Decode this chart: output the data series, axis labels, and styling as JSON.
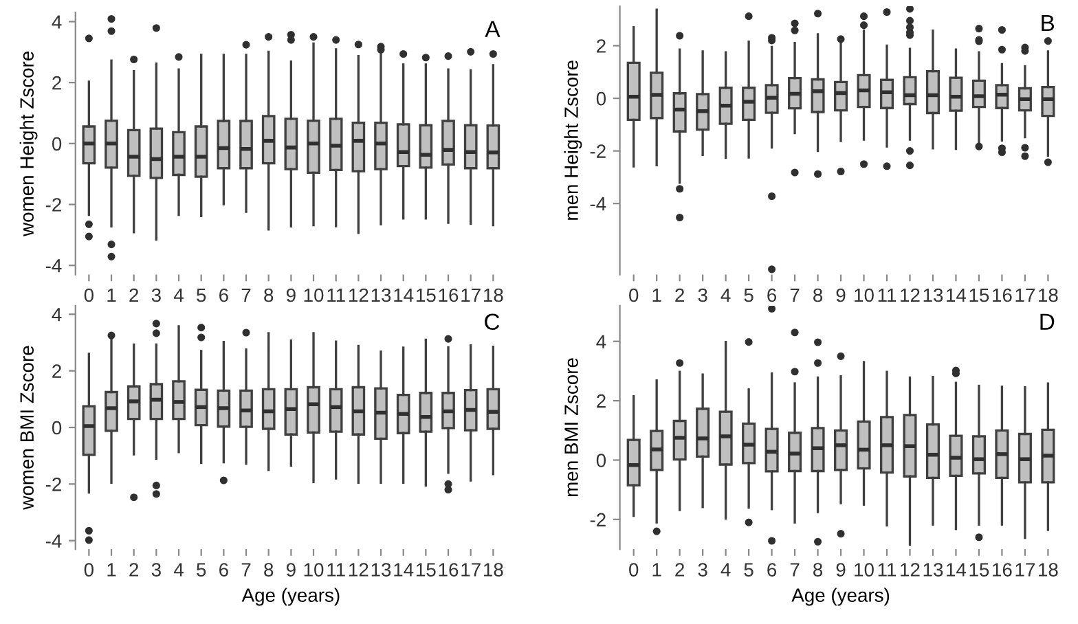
{
  "chart_data": [
    {
      "type": "box",
      "ylabel": "women Height Zscore",
      "annotations": [
        "A"
      ],
      "categories": [
        "0",
        "1",
        "2",
        "3",
        "4",
        "5",
        "6",
        "7",
        "8",
        "9",
        "10",
        "11",
        "12",
        "13",
        "14",
        "15",
        "16",
        "17",
        "18"
      ],
      "color": "#bfbfbf",
      "ylim": [
        -4.3,
        4.3
      ],
      "yticks": [
        -4,
        -2,
        0,
        2,
        4
      ],
      "boxes": [
        {
          "low": -2.34,
          "q1": -0.65,
          "median": 0,
          "q3": 0.56,
          "high": 2.03,
          "outliers": [
            3.45,
            -2.65,
            -3.05
          ]
        },
        {
          "low": -2.72,
          "q1": -0.79,
          "median": 0,
          "q3": 0.75,
          "high": 2.72,
          "outliers": [
            4.09,
            3.69,
            -3.31,
            -3.71
          ]
        },
        {
          "low": -2.91,
          "q1": -1.06,
          "median": -0.43,
          "q3": 0.44,
          "high": 2.37,
          "outliers": [
            2.76
          ]
        },
        {
          "low": -3.15,
          "q1": -1.13,
          "median": -0.51,
          "q3": 0.49,
          "high": 2.62,
          "outliers": [
            3.79
          ]
        },
        {
          "low": -2.34,
          "q1": -1.03,
          "median": -0.43,
          "q3": 0.37,
          "high": 2.43,
          "outliers": [
            2.84
          ]
        },
        {
          "low": -2.38,
          "q1": -1.09,
          "median": -0.43,
          "q3": 0.56,
          "high": 2.91
        },
        {
          "low": -1.99,
          "q1": -0.81,
          "median": -0.15,
          "q3": 0.74,
          "high": 2.91
        },
        {
          "low": -2.24,
          "q1": -0.81,
          "median": -0.18,
          "q3": 0.74,
          "high": 2.91,
          "outliers": [
            3.24
          ]
        },
        {
          "low": -2.82,
          "q1": -0.65,
          "median": 0.09,
          "q3": 0.9,
          "high": 3.01,
          "outliers": [
            3.5
          ]
        },
        {
          "low": -2.72,
          "q1": -0.84,
          "median": -0.13,
          "q3": 0.81,
          "high": 2.69,
          "outliers": [
            3.57,
            3.4
          ]
        },
        {
          "low": -2.68,
          "q1": -0.96,
          "median": 0,
          "q3": 0.75,
          "high": 3.28,
          "outliers": [
            3.5
          ]
        },
        {
          "low": -2.71,
          "q1": -0.87,
          "median": -0.07,
          "q3": 0.81,
          "high": 3.09,
          "outliers": [
            3.4
          ]
        },
        {
          "low": -2.93,
          "q1": -0.91,
          "median": 0.09,
          "q3": 0.68,
          "high": 2.87,
          "outliers": [
            3.25
          ]
        },
        {
          "low": -2.65,
          "q1": -0.84,
          "median": 0,
          "q3": 0.68,
          "high": 2.99,
          "outliers": [
            3.18,
            3.08
          ]
        },
        {
          "low": -2.46,
          "q1": -0.74,
          "median": -0.28,
          "q3": 0.63,
          "high": 2.59,
          "outliers": [
            2.94
          ]
        },
        {
          "low": -2.46,
          "q1": -0.79,
          "median": -0.37,
          "q3": 0.6,
          "high": 2.59,
          "outliers": [
            2.82
          ]
        },
        {
          "low": -2.6,
          "q1": -0.69,
          "median": -0.21,
          "q3": 0.74,
          "high": 2.43,
          "outliers": [
            2.87
          ]
        },
        {
          "low": -2.63,
          "q1": -0.81,
          "median": -0.28,
          "q3": 0.6,
          "high": 2.4,
          "outliers": [
            3.01
          ]
        },
        {
          "low": -2.68,
          "q1": -0.81,
          "median": -0.29,
          "q3": 0.59,
          "high": 2.57,
          "outliers": [
            2.94
          ]
        }
      ]
    },
    {
      "type": "box",
      "ylabel": "men Height Zscore",
      "annotations": [
        "B"
      ],
      "categories": [
        "0",
        "1",
        "2",
        "3",
        "4",
        "5",
        "6",
        "7",
        "8",
        "9",
        "10",
        "11",
        "12",
        "13",
        "14",
        "15",
        "16",
        "17",
        "18"
      ],
      "color": "#bfbfbf",
      "ylim": [
        -6.7,
        3.5
      ],
      "yticks": [
        -4,
        -2,
        0,
        2
      ],
      "boxes": [
        {
          "low": -2.59,
          "q1": -0.82,
          "median": 0.06,
          "q3": 1.35,
          "high": 2.7
        },
        {
          "low": -2.54,
          "q1": -0.75,
          "median": 0.13,
          "q3": 0.97,
          "high": 3.37
        },
        {
          "low": -3.21,
          "q1": -1.26,
          "median": -0.43,
          "q3": 0.19,
          "high": 1.85,
          "outliers": [
            2.38,
            -3.44,
            -4.53
          ]
        },
        {
          "low": -2.15,
          "q1": -1.19,
          "median": -0.49,
          "q3": 0.16,
          "high": 1.78
        },
        {
          "low": -2.26,
          "q1": -0.97,
          "median": -0.28,
          "q3": 0.4,
          "high": 1.75
        },
        {
          "low": -2.25,
          "q1": -0.82,
          "median": -0.13,
          "q3": 0.4,
          "high": 2.15,
          "outliers": [
            3.12
          ]
        },
        {
          "low": -1.87,
          "q1": -0.55,
          "median": 0.02,
          "q3": 0.5,
          "high": 1.95,
          "outliers": [
            2.3,
            2.2,
            -3.72,
            -6.5
          ]
        },
        {
          "low": -1.32,
          "q1": -0.38,
          "median": 0.17,
          "q3": 0.77,
          "high": 2.1,
          "outliers": [
            2.85,
            2.58,
            -2.82
          ]
        },
        {
          "low": -2.0,
          "q1": -0.52,
          "median": 0.27,
          "q3": 0.72,
          "high": 2.43,
          "outliers": [
            3.22,
            -2.88
          ]
        },
        {
          "low": -1.62,
          "q1": -0.46,
          "median": 0.2,
          "q3": 0.62,
          "high": 2.2,
          "outliers": [
            2.25,
            -2.78
          ]
        },
        {
          "low": -1.57,
          "q1": -0.33,
          "median": 0.3,
          "q3": 0.88,
          "high": 2.57,
          "outliers": [
            3.12,
            2.78,
            -2.5
          ]
        },
        {
          "low": -1.83,
          "q1": -0.37,
          "median": 0.23,
          "q3": 0.7,
          "high": 2.0,
          "outliers": [
            3.28,
            -2.58
          ]
        },
        {
          "low": -1.57,
          "q1": -0.22,
          "median": 0.12,
          "q3": 0.8,
          "high": 1.88,
          "outliers": [
            3.4,
            2.95,
            2.7,
            2.5,
            2.4,
            -2.0,
            -2.55
          ]
        },
        {
          "low": -1.9,
          "q1": -0.56,
          "median": 0.12,
          "q3": 1.03,
          "high": 2.57
        },
        {
          "low": -1.92,
          "q1": -0.47,
          "median": 0.06,
          "q3": 0.78,
          "high": 1.85
        },
        {
          "low": -1.77,
          "q1": -0.33,
          "median": 0.08,
          "q3": 0.67,
          "high": 1.75,
          "outliers": [
            2.65,
            2.22,
            2.17,
            -1.83
          ]
        },
        {
          "low": -1.6,
          "q1": -0.37,
          "median": 0.14,
          "q3": 0.5,
          "high": 1.3,
          "outliers": [
            2.6,
            1.85,
            -1.9,
            -2.05
          ]
        },
        {
          "low": -1.48,
          "q1": -0.46,
          "median": -0.03,
          "q3": 0.38,
          "high": 1.22,
          "outliers": [
            1.93,
            1.8,
            -1.88,
            -2.2
          ]
        },
        {
          "low": -2.18,
          "q1": -0.67,
          "median": -0.03,
          "q3": 0.43,
          "high": 1.78,
          "outliers": [
            2.18,
            -2.43
          ]
        }
      ]
    },
    {
      "type": "box",
      "ylabel": "women BMI Zscore",
      "xlabel": "Age (years)",
      "annotations": [
        "C"
      ],
      "categories": [
        "0",
        "1",
        "2",
        "3",
        "4",
        "5",
        "6",
        "7",
        "8",
        "9",
        "10",
        "11",
        "12",
        "13",
        "14",
        "15",
        "16",
        "17",
        "18"
      ],
      "color": "#bfbfbf",
      "ylim": [
        -4.3,
        4.3
      ],
      "yticks": [
        -4,
        -2,
        0,
        2,
        4
      ],
      "boxes": [
        {
          "low": -2.3,
          "q1": -0.97,
          "median": 0.05,
          "q3": 0.75,
          "high": 2.6,
          "outliers": [
            -3.65,
            -3.98
          ]
        },
        {
          "low": -1.95,
          "q1": -0.12,
          "median": 0.68,
          "q3": 1.25,
          "high": 3.28,
          "outliers": [
            3.25
          ]
        },
        {
          "low": -0.95,
          "q1": 0.3,
          "median": 0.92,
          "q3": 1.45,
          "high": 2.93,
          "outliers": [
            -2.47
          ]
        },
        {
          "low": -1.1,
          "q1": 0.3,
          "median": 0.98,
          "q3": 1.53,
          "high": 2.93,
          "outliers": [
            3.67,
            3.33,
            -2.05,
            -2.35
          ]
        },
        {
          "low": -0.87,
          "q1": 0.3,
          "median": 0.9,
          "q3": 1.63,
          "high": 3.57
        },
        {
          "low": -1.25,
          "q1": 0.08,
          "median": 0.72,
          "q3": 1.33,
          "high": 2.7,
          "outliers": [
            3.53,
            3.18
          ]
        },
        {
          "low": -1.23,
          "q1": 0.03,
          "median": 0.68,
          "q3": 1.3,
          "high": 3.02,
          "outliers": [
            -1.87
          ]
        },
        {
          "low": -1.28,
          "q1": 0.02,
          "median": 0.6,
          "q3": 1.3,
          "high": 2.75,
          "outliers": [
            3.35
          ]
        },
        {
          "low": -1.5,
          "q1": -0.05,
          "median": 0.57,
          "q3": 1.35,
          "high": 3.33
        },
        {
          "low": -1.35,
          "q1": -0.25,
          "median": 0.65,
          "q3": 1.35,
          "high": 3.07
        },
        {
          "low": -1.93,
          "q1": -0.18,
          "median": 0.82,
          "q3": 1.42,
          "high": 3.33
        },
        {
          "low": -1.8,
          "q1": -0.15,
          "median": 0.72,
          "q3": 1.35,
          "high": 3.03
        },
        {
          "low": -1.95,
          "q1": -0.25,
          "median": 0.57,
          "q3": 1.42,
          "high": 2.88
        },
        {
          "low": -1.95,
          "q1": -0.4,
          "median": 0.52,
          "q3": 1.38,
          "high": 2.68
        },
        {
          "low": -1.95,
          "q1": -0.2,
          "median": 0.48,
          "q3": 1.15,
          "high": 2.82
        },
        {
          "low": -2.05,
          "q1": -0.15,
          "median": 0.37,
          "q3": 1.22,
          "high": 3.1
        },
        {
          "low": -1.6,
          "q1": -0.02,
          "median": 0.57,
          "q3": 1.22,
          "high": 2.83,
          "outliers": [
            3.13,
            -2.0,
            -2.2
          ]
        },
        {
          "low": -1.87,
          "q1": -0.1,
          "median": 0.62,
          "q3": 1.32,
          "high": 2.9
        },
        {
          "low": -1.65,
          "q1": -0.05,
          "median": 0.55,
          "q3": 1.35,
          "high": 2.85
        }
      ]
    },
    {
      "type": "box",
      "ylabel": "men BMI Zscore",
      "xlabel": "Age (years)",
      "annotations": [
        "D"
      ],
      "categories": [
        "0",
        "1",
        "2",
        "3",
        "4",
        "5",
        "6",
        "7",
        "8",
        "9",
        "10",
        "11",
        "12",
        "13",
        "14",
        "15",
        "16",
        "17",
        "18"
      ],
      "color": "#bfbfbf",
      "ylim": [
        -3.0,
        5.2
      ],
      "yticks": [
        -2,
        0,
        2,
        4
      ],
      "boxes": [
        {
          "low": -1.88,
          "q1": -0.85,
          "median": -0.17,
          "q3": 0.68,
          "high": 2.15
        },
        {
          "low": -2.1,
          "q1": -0.33,
          "median": 0.36,
          "q3": 0.98,
          "high": 2.68,
          "outliers": [
            -2.4
          ]
        },
        {
          "low": -1.68,
          "q1": 0.02,
          "median": 0.75,
          "q3": 1.32,
          "high": 2.97,
          "outliers": [
            3.27
          ]
        },
        {
          "low": -1.58,
          "q1": 0.12,
          "median": 0.73,
          "q3": 1.73,
          "high": 2.88
        },
        {
          "low": -1.97,
          "q1": -0.15,
          "median": 0.8,
          "q3": 1.63,
          "high": 3.98
        },
        {
          "low": -1.6,
          "q1": -0.1,
          "median": 0.52,
          "q3": 1.23,
          "high": 2.38,
          "outliers": [
            3.98,
            -2.1
          ]
        },
        {
          "low": -1.65,
          "q1": -0.38,
          "median": 0.28,
          "q3": 1.05,
          "high": 2.92,
          "outliers": [
            5.1,
            -2.72
          ]
        },
        {
          "low": -2.1,
          "q1": -0.37,
          "median": 0.22,
          "q3": 0.92,
          "high": 2.58,
          "outliers": [
            4.3,
            2.98
          ]
        },
        {
          "low": -1.75,
          "q1": -0.37,
          "median": 0.4,
          "q3": 1.08,
          "high": 2.78,
          "outliers": [
            3.97,
            3.27,
            -2.75
          ]
        },
        {
          "low": -1.45,
          "q1": -0.33,
          "median": 0.5,
          "q3": 1.0,
          "high": 2.82,
          "outliers": [
            3.5,
            -2.48
          ]
        },
        {
          "low": -1.5,
          "q1": -0.28,
          "median": 0.35,
          "q3": 1.3,
          "high": 3.3
        },
        {
          "low": -2.2,
          "q1": -0.42,
          "median": 0.5,
          "q3": 1.45,
          "high": 2.97
        },
        {
          "low": -2.85,
          "q1": -0.55,
          "median": 0.47,
          "q3": 1.52,
          "high": 2.78
        },
        {
          "low": -2.17,
          "q1": -0.6,
          "median": 0.18,
          "q3": 1.2,
          "high": 2.8
        },
        {
          "low": -2.32,
          "q1": -0.53,
          "median": 0.08,
          "q3": 0.82,
          "high": 2.6,
          "outliers": [
            3.02,
            2.92
          ]
        },
        {
          "low": -2.17,
          "q1": -0.45,
          "median": 0.03,
          "q3": 0.8,
          "high": 2.5,
          "outliers": [
            -2.6
          ]
        },
        {
          "low": -2.17,
          "q1": -0.6,
          "median": 0.2,
          "q3": 1.0,
          "high": 2.47
        },
        {
          "low": -2.62,
          "q1": -0.75,
          "median": 0.03,
          "q3": 0.88,
          "high": 2.45
        },
        {
          "low": -2.35,
          "q1": -0.75,
          "median": 0.15,
          "q3": 1.02,
          "high": 2.58
        }
      ]
    }
  ]
}
